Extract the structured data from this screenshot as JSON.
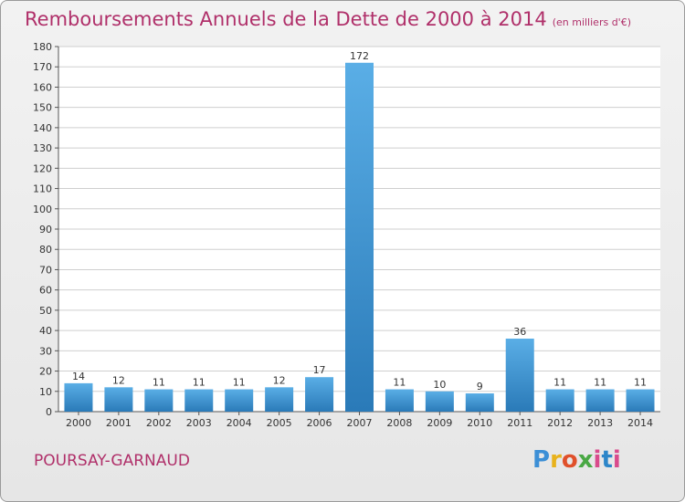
{
  "title": "Remboursements Annuels de la Dette de 2000 à 2014",
  "subtitle": "(en milliers d'€)",
  "commune": "POURSAY-GARNAUD",
  "logo": "Proxiti",
  "colors": {
    "title": "#b0306a",
    "bar_top": "#5aaee6",
    "bar_bottom": "#2a7ab8",
    "grid": "#cfcfcf"
  },
  "chart_data": {
    "type": "bar",
    "categories": [
      "2000",
      "2001",
      "2002",
      "2003",
      "2004",
      "2005",
      "2006",
      "2007",
      "2008",
      "2009",
      "2010",
      "2011",
      "2012",
      "2013",
      "2014"
    ],
    "values": [
      14,
      12,
      11,
      11,
      11,
      12,
      17,
      172,
      11,
      10,
      9,
      36,
      11,
      11,
      11
    ],
    "ylim": [
      0,
      180
    ],
    "yticks": [
      0,
      10,
      20,
      30,
      40,
      50,
      60,
      70,
      80,
      90,
      100,
      110,
      120,
      130,
      140,
      150,
      160,
      170,
      180
    ],
    "grid": true,
    "legend": "none"
  }
}
